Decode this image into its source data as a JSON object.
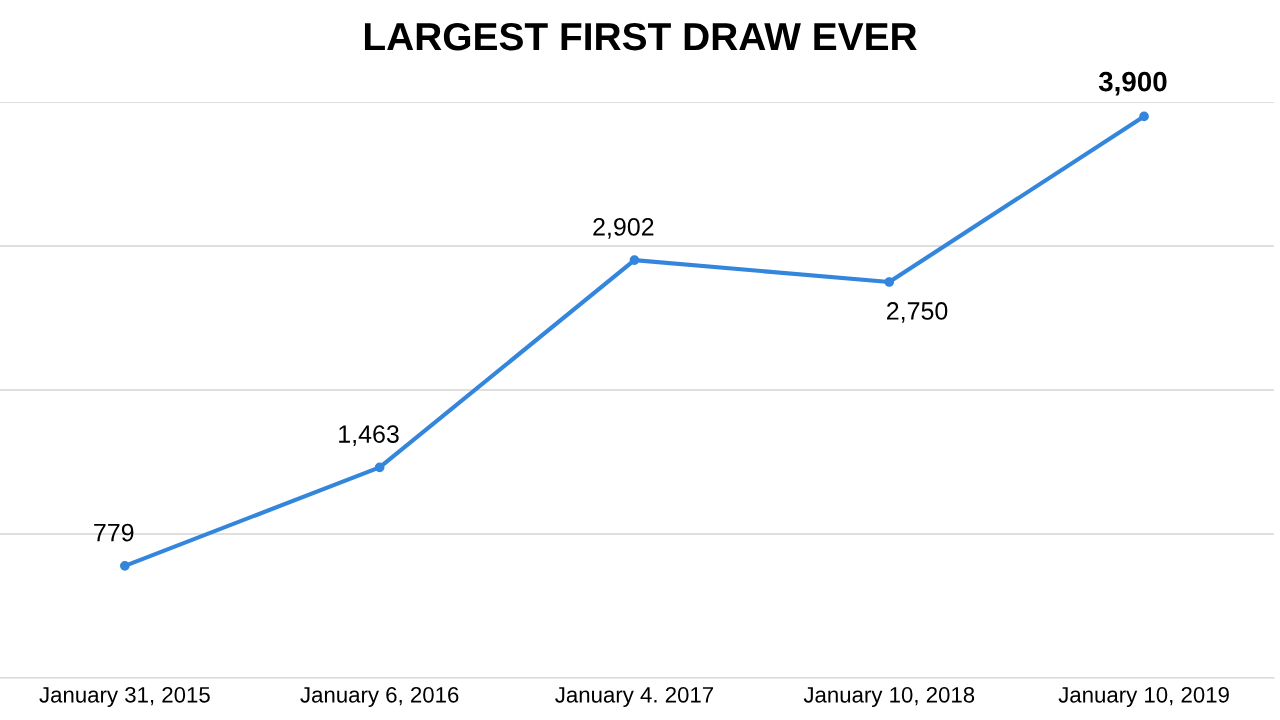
{
  "chart_data": {
    "type": "line",
    "title": "LARGEST FIRST DRAW EVER",
    "categories": [
      "January 31, 2015",
      "January 6, 2016",
      "January 4. 2017",
      "January 10, 2018",
      "January 10, 2019"
    ],
    "series": [
      {
        "color": "#3386db",
        "values": [
          779,
          1463,
          2902,
          2750,
          3900
        ],
        "value_labels": [
          "779",
          "1,463",
          "2,902",
          "2,750",
          "3,900"
        ]
      }
    ],
    "ylim": [
      0,
      4000
    ],
    "yticks": [
      {
        "value": 0,
        "label": null
      },
      {
        "value": 1000,
        "label": null
      },
      {
        "value": 2000,
        "label": null
      },
      {
        "value": 3000,
        "label": null
      },
      {
        "value": 4000,
        "label": null
      }
    ],
    "grid": "y",
    "tick_labels": "x",
    "marker": "circle",
    "line_style": "solid"
  }
}
